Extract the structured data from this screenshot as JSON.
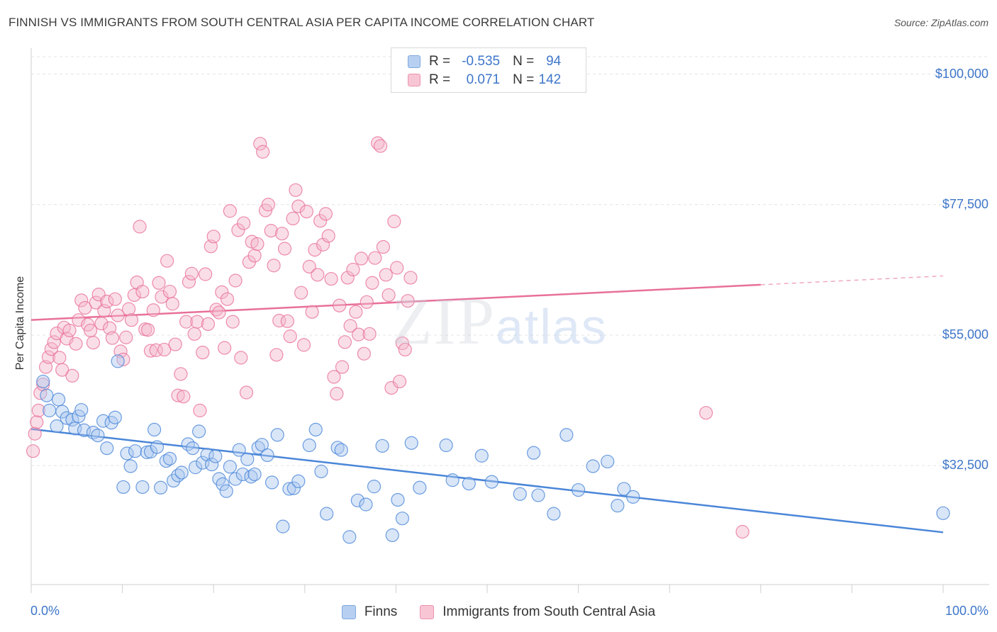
{
  "header": {
    "title": "FINNISH VS IMMIGRANTS FROM SOUTH CENTRAL ASIA PER CAPITA INCOME CORRELATION CHART",
    "source": "Source: ZipAtlas.com"
  },
  "watermark": {
    "zip": "ZIP",
    "atlas": "atlas"
  },
  "legend": {
    "r_label": "R =",
    "n_label": "N =",
    "rows": [
      {
        "r": "-0.535",
        "n": "94",
        "color": "#b7d0f2"
      },
      {
        "r": "0.071",
        "n": "142",
        "color": "#f8c5d4"
      }
    ]
  },
  "bottom_legend": [
    {
      "label": "Finns",
      "color": "#b7d0f2"
    },
    {
      "label": "Immigrants from South Central Asia",
      "color": "#f8c5d4"
    }
  ],
  "chart_data": {
    "type": "scatter",
    "title": "FINNISH VS IMMIGRANTS FROM SOUTH CENTRAL ASIA PER CAPITA INCOME CORRELATION CHART",
    "xlabel": "",
    "ylabel": "Per Capita Income",
    "xlim": [
      0,
      100
    ],
    "ylim": [
      12000,
      103000
    ],
    "x_tick_labels": [
      "0.0%",
      "100.0%"
    ],
    "y_ticks": [
      32500,
      55000,
      77500,
      100000
    ],
    "y_tick_labels": [
      "$32,500",
      "$55,000",
      "$77,500",
      "$100,000"
    ],
    "grid": true,
    "legend_position": "top-center",
    "series": [
      {
        "name": "Finns",
        "color": "#4a86d8",
        "fill": "#aac8f0",
        "trend": {
          "x": [
            0,
            100
          ],
          "y": [
            38800,
            21000
          ],
          "dashed_from": null
        },
        "points": [
          [
            1.3,
            47000
          ],
          [
            1.7,
            44600
          ],
          [
            2.0,
            42000
          ],
          [
            2.8,
            39300
          ],
          [
            3.0,
            43900
          ],
          [
            3.4,
            41800
          ],
          [
            3.9,
            40700
          ],
          [
            4.5,
            40400
          ],
          [
            4.8,
            38900
          ],
          [
            5.2,
            41000
          ],
          [
            5.5,
            42100
          ],
          [
            5.8,
            38600
          ],
          [
            6.8,
            38200
          ],
          [
            7.3,
            37700
          ],
          [
            7.9,
            40200
          ],
          [
            8.3,
            35500
          ],
          [
            8.8,
            39900
          ],
          [
            9.2,
            40800
          ],
          [
            9.5,
            50500
          ],
          [
            10.1,
            28800
          ],
          [
            10.5,
            34600
          ],
          [
            10.9,
            32400
          ],
          [
            11.4,
            35000
          ],
          [
            12.2,
            28800
          ],
          [
            12.7,
            34800
          ],
          [
            13.1,
            34900
          ],
          [
            13.5,
            38700
          ],
          [
            13.8,
            35700
          ],
          [
            14.2,
            28700
          ],
          [
            14.8,
            33300
          ],
          [
            15.2,
            33700
          ],
          [
            15.6,
            29900
          ],
          [
            16.1,
            30800
          ],
          [
            16.5,
            31300
          ],
          [
            17.2,
            36200
          ],
          [
            17.7,
            35500
          ],
          [
            18.0,
            32200
          ],
          [
            18.4,
            38400
          ],
          [
            18.8,
            33000
          ],
          [
            19.3,
            34400
          ],
          [
            19.8,
            32700
          ],
          [
            20.2,
            34100
          ],
          [
            20.6,
            30200
          ],
          [
            21.0,
            29300
          ],
          [
            21.4,
            28100
          ],
          [
            21.8,
            32300
          ],
          [
            22.4,
            30200
          ],
          [
            22.8,
            35200
          ],
          [
            23.2,
            31000
          ],
          [
            23.7,
            33600
          ],
          [
            24.1,
            30600
          ],
          [
            24.5,
            31000
          ],
          [
            24.9,
            35600
          ],
          [
            25.3,
            36100
          ],
          [
            25.9,
            34300
          ],
          [
            26.4,
            29600
          ],
          [
            27.0,
            37800
          ],
          [
            27.6,
            22000
          ],
          [
            28.3,
            28500
          ],
          [
            28.8,
            28600
          ],
          [
            29.3,
            29800
          ],
          [
            30.5,
            36000
          ],
          [
            31.2,
            38700
          ],
          [
            31.8,
            31500
          ],
          [
            32.4,
            24200
          ],
          [
            33.6,
            35600
          ],
          [
            34.0,
            35200
          ],
          [
            34.9,
            20200
          ],
          [
            35.8,
            26500
          ],
          [
            36.7,
            25800
          ],
          [
            37.6,
            28900
          ],
          [
            38.5,
            35900
          ],
          [
            39.6,
            20500
          ],
          [
            40.2,
            26600
          ],
          [
            40.7,
            23400
          ],
          [
            41.7,
            36400
          ],
          [
            42.6,
            28700
          ],
          [
            45.5,
            36000
          ],
          [
            46.2,
            30000
          ],
          [
            48.0,
            29400
          ],
          [
            49.4,
            34200
          ],
          [
            50.5,
            29700
          ],
          [
            53.6,
            27600
          ],
          [
            55.1,
            34700
          ],
          [
            55.6,
            27400
          ],
          [
            57.3,
            24200
          ],
          [
            58.7,
            37800
          ],
          [
            60.0,
            28300
          ],
          [
            61.6,
            32400
          ],
          [
            63.2,
            33200
          ],
          [
            64.3,
            25600
          ],
          [
            65.0,
            28500
          ],
          [
            66.0,
            27100
          ],
          [
            100.0,
            24300
          ]
        ]
      },
      {
        "name": "Immigrants from South Central Asia",
        "color": "#e8709a",
        "fill": "#f5b6ca",
        "trend": {
          "x": [
            0,
            100
          ],
          "y": [
            57600,
            65200
          ],
          "dashed_from": 80
        },
        "points": [
          [
            0.2,
            35000
          ],
          [
            0.4,
            38000
          ],
          [
            0.6,
            40000
          ],
          [
            0.8,
            42000
          ],
          [
            1.0,
            45000
          ],
          [
            1.3,
            46500
          ],
          [
            1.6,
            49500
          ],
          [
            1.9,
            51200
          ],
          [
            2.2,
            52600
          ],
          [
            2.5,
            53800
          ],
          [
            2.8,
            55300
          ],
          [
            3.1,
            51100
          ],
          [
            3.4,
            49000
          ],
          [
            3.6,
            56300
          ],
          [
            3.9,
            54400
          ],
          [
            4.2,
            55800
          ],
          [
            4.5,
            48000
          ],
          [
            4.9,
            53500
          ],
          [
            5.2,
            57600
          ],
          [
            5.5,
            61000
          ],
          [
            5.9,
            59700
          ],
          [
            6.2,
            56800
          ],
          [
            6.5,
            55800
          ],
          [
            6.8,
            53700
          ],
          [
            7.1,
            60600
          ],
          [
            7.4,
            62000
          ],
          [
            7.7,
            57000
          ],
          [
            8.0,
            59200
          ],
          [
            8.3,
            60800
          ],
          [
            8.6,
            56200
          ],
          [
            8.9,
            54500
          ],
          [
            9.2,
            61200
          ],
          [
            9.5,
            58400
          ],
          [
            9.8,
            52200
          ],
          [
            10.1,
            50800
          ],
          [
            10.4,
            54600
          ],
          [
            10.7,
            59500
          ],
          [
            11.0,
            57600
          ],
          [
            11.3,
            61900
          ],
          [
            11.6,
            64100
          ],
          [
            11.9,
            73700
          ],
          [
            12.2,
            62500
          ],
          [
            12.5,
            56000
          ],
          [
            12.8,
            55900
          ],
          [
            13.1,
            52300
          ],
          [
            13.4,
            59300
          ],
          [
            13.7,
            52400
          ],
          [
            14.0,
            64000
          ],
          [
            14.3,
            61600
          ],
          [
            14.6,
            52500
          ],
          [
            14.9,
            67800
          ],
          [
            15.2,
            62500
          ],
          [
            15.5,
            60400
          ],
          [
            15.8,
            53400
          ],
          [
            16.1,
            44600
          ],
          [
            16.4,
            48300
          ],
          [
            16.7,
            44400
          ],
          [
            17.0,
            57300
          ],
          [
            17.3,
            64200
          ],
          [
            17.6,
            65600
          ],
          [
            17.9,
            55200
          ],
          [
            18.2,
            57300
          ],
          [
            18.5,
            42000
          ],
          [
            18.8,
            52000
          ],
          [
            19.1,
            65500
          ],
          [
            19.4,
            56900
          ],
          [
            19.7,
            70300
          ],
          [
            20.0,
            72000
          ],
          [
            20.3,
            59400
          ],
          [
            20.6,
            58900
          ],
          [
            20.9,
            62400
          ],
          [
            21.2,
            52800
          ],
          [
            21.5,
            61200
          ],
          [
            21.8,
            76400
          ],
          [
            22.1,
            57300
          ],
          [
            22.4,
            64400
          ],
          [
            22.7,
            73100
          ],
          [
            23.0,
            51100
          ],
          [
            23.3,
            74300
          ],
          [
            23.6,
            45100
          ],
          [
            23.9,
            67600
          ],
          [
            24.2,
            71100
          ],
          [
            24.5,
            68700
          ],
          [
            24.8,
            70700
          ],
          [
            25.1,
            88000
          ],
          [
            25.4,
            86600
          ],
          [
            25.7,
            76500
          ],
          [
            26.0,
            77500
          ],
          [
            26.3,
            73000
          ],
          [
            26.6,
            67000
          ],
          [
            26.9,
            51600
          ],
          [
            27.2,
            57500
          ],
          [
            27.5,
            72500
          ],
          [
            27.8,
            69900
          ],
          [
            28.1,
            57400
          ],
          [
            28.4,
            54800
          ],
          [
            28.7,
            75100
          ],
          [
            29.0,
            80000
          ],
          [
            29.3,
            77200
          ],
          [
            29.6,
            62300
          ],
          [
            29.9,
            53300
          ],
          [
            30.2,
            76300
          ],
          [
            30.5,
            66800
          ],
          [
            30.8,
            59000
          ],
          [
            31.1,
            69700
          ],
          [
            31.4,
            65400
          ],
          [
            31.7,
            74700
          ],
          [
            32.0,
            70600
          ],
          [
            32.3,
            75900
          ],
          [
            32.6,
            72100
          ],
          [
            32.9,
            64700
          ],
          [
            33.2,
            47800
          ],
          [
            33.5,
            44900
          ],
          [
            33.8,
            60100
          ],
          [
            34.1,
            49500
          ],
          [
            34.4,
            53800
          ],
          [
            34.7,
            64900
          ],
          [
            35.0,
            56600
          ],
          [
            35.3,
            66300
          ],
          [
            35.6,
            59000
          ],
          [
            35.9,
            55100
          ],
          [
            36.2,
            68200
          ],
          [
            36.5,
            51800
          ],
          [
            36.8,
            60700
          ],
          [
            37.1,
            55200
          ],
          [
            37.4,
            64000
          ],
          [
            37.7,
            68300
          ],
          [
            38.0,
            88100
          ],
          [
            38.3,
            87600
          ],
          [
            38.6,
            70200
          ],
          [
            38.9,
            65400
          ],
          [
            39.2,
            61900
          ],
          [
            39.5,
            45900
          ],
          [
            39.8,
            74600
          ],
          [
            40.1,
            66600
          ],
          [
            40.4,
            47000
          ],
          [
            40.7,
            53600
          ],
          [
            41.0,
            52500
          ],
          [
            41.3,
            60900
          ],
          [
            41.6,
            64900
          ],
          [
            74.0,
            41600
          ],
          [
            78.0,
            21100
          ]
        ]
      }
    ]
  }
}
